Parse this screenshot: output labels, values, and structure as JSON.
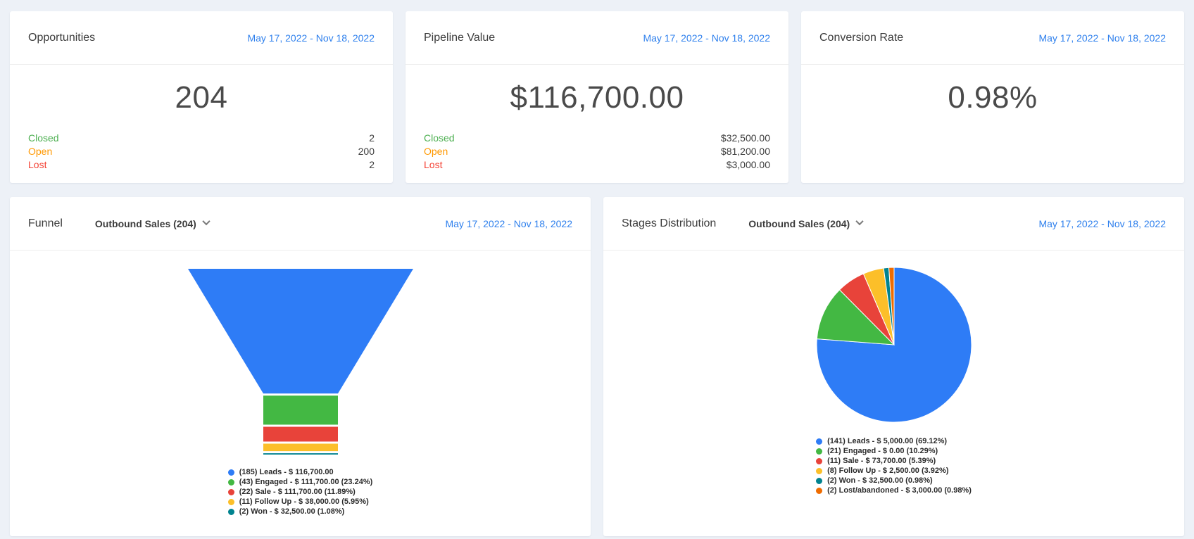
{
  "palette": {
    "page_bg": "#edf1f7",
    "card_bg": "#ffffff",
    "divider": "#ededed",
    "link_blue": "#2f80ed",
    "status_green": "#4caf50",
    "status_orange": "#ff9800",
    "status_red": "#f44336",
    "series_blue": "#2e7cf6",
    "series_green": "#43b843",
    "series_red": "#e8433a",
    "series_yellow": "#fcbf29",
    "series_teal": "#00838f",
    "series_orange": "#ef6c00"
  },
  "cards": {
    "opportunities": {
      "title": "Opportunities",
      "date_range": "May 17, 2022 - Nov 18, 2022",
      "total": "204",
      "rows": [
        {
          "label": "Closed",
          "value": "2",
          "color": "#4caf50"
        },
        {
          "label": "Open",
          "value": "200",
          "color": "#ff9800"
        },
        {
          "label": "Lost",
          "value": "2",
          "color": "#f44336"
        }
      ]
    },
    "pipeline": {
      "title": "Pipeline Value",
      "date_range": "May 17, 2022 - Nov 18, 2022",
      "total": "$116,700.00",
      "rows": [
        {
          "label": "Closed",
          "value": "$32,500.00",
          "color": "#4caf50"
        },
        {
          "label": "Open",
          "value": "$81,200.00",
          "color": "#ff9800"
        },
        {
          "label": "Lost",
          "value": "$3,000.00",
          "color": "#f44336"
        }
      ]
    },
    "conversion": {
      "title": "Conversion Rate",
      "date_range": "May 17, 2022 - Nov 18, 2022",
      "total": "0.98%"
    },
    "funnel": {
      "title": "Funnel",
      "filter_label": "Outbound Sales (204)",
      "date_range": "May 17, 2022 - Nov 18, 2022",
      "legend": [
        {
          "color": "#2e7cf6",
          "text": "(185) Leads - $ 116,700.00"
        },
        {
          "color": "#43b843",
          "text": "(43) Engaged - $ 111,700.00 (23.24%)"
        },
        {
          "color": "#e8433a",
          "text": "(22) Sale - $ 111,700.00 (11.89%)"
        },
        {
          "color": "#fcbf29",
          "text": "(11) Follow Up - $ 38,000.00 (5.95%)"
        },
        {
          "color": "#00838f",
          "text": "(2) Won - $ 32,500.00 (1.08%)"
        }
      ]
    },
    "stages": {
      "title": "Stages Distribution",
      "filter_label": "Outbound Sales (204)",
      "date_range": "May 17, 2022 - Nov 18, 2022",
      "legend": [
        {
          "color": "#2e7cf6",
          "text": "(141) Leads - $ 5,000.00 (69.12%)"
        },
        {
          "color": "#43b843",
          "text": "(21) Engaged - $ 0.00 (10.29%)"
        },
        {
          "color": "#e8433a",
          "text": "(11) Sale - $ 73,700.00 (5.39%)"
        },
        {
          "color": "#fcbf29",
          "text": "(8) Follow Up - $ 2,500.00 (3.92%)"
        },
        {
          "color": "#00838f",
          "text": "(2) Won - $ 32,500.00 (0.98%)"
        },
        {
          "color": "#ef6c00",
          "text": "(2) Lost/abandoned - $ 3,000.00 (0.98%)"
        }
      ]
    }
  },
  "chart_data": [
    {
      "id": "funnel",
      "type": "funnel",
      "title": "Funnel",
      "categories": [
        "Leads",
        "Engaged",
        "Sale",
        "Follow Up",
        "Won"
      ],
      "counts": [
        185,
        43,
        22,
        11,
        2
      ],
      "amounts": [
        "$116,700.00",
        "$111,700.00",
        "$111,700.00",
        "$38,000.00",
        "$32,500.00"
      ],
      "percentages": [
        null,
        23.24,
        11.89,
        5.95,
        1.08
      ],
      "colors": [
        "#2e7cf6",
        "#43b843",
        "#e8433a",
        "#fcbf29",
        "#00838f"
      ]
    },
    {
      "id": "stages-pie",
      "type": "pie",
      "title": "Stages Distribution",
      "categories": [
        "Leads",
        "Engaged",
        "Sale",
        "Follow Up",
        "Won",
        "Lost/abandoned"
      ],
      "counts": [
        141,
        21,
        11,
        8,
        2,
        2
      ],
      "amounts": [
        "$5,000.00",
        "$0.00",
        "$73,700.00",
        "$2,500.00",
        "$32,500.00",
        "$3,000.00"
      ],
      "percentages": [
        69.12,
        10.29,
        5.39,
        3.92,
        0.98,
        0.98
      ],
      "colors": [
        "#2e7cf6",
        "#43b843",
        "#e8433a",
        "#fcbf29",
        "#00838f",
        "#ef6c00"
      ]
    }
  ]
}
